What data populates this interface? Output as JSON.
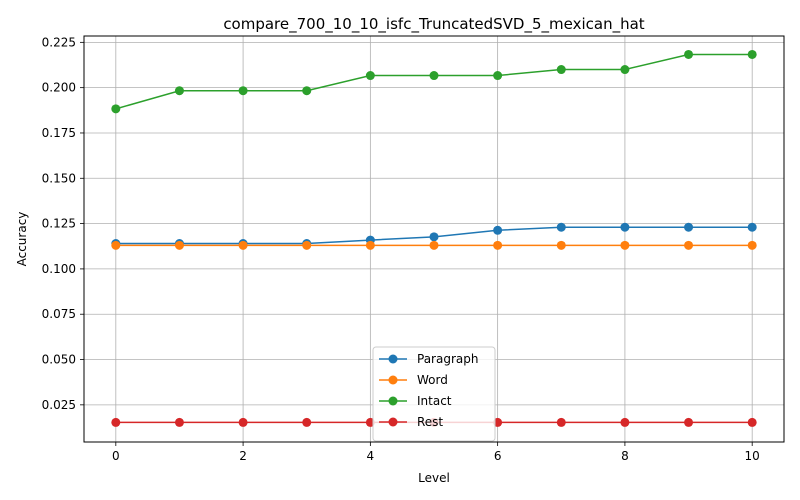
{
  "chart_data": {
    "type": "line",
    "title": "compare_700_10_10_isfc_TruncatedSVD_5_mexican_hat",
    "xlabel": "Level",
    "ylabel": "Accuracy",
    "x": [
      0,
      1,
      2,
      3,
      4,
      5,
      6,
      7,
      8,
      9,
      10
    ],
    "xlim": [
      -0.5,
      10.5
    ],
    "ylim": [
      0.0045,
      0.2285
    ],
    "xticks": [
      0,
      2,
      4,
      6,
      8,
      10
    ],
    "xtick_labels": [
      "0",
      "2",
      "4",
      "6",
      "8",
      "10"
    ],
    "yticks": [
      0.025,
      0.05,
      0.075,
      0.1,
      0.125,
      0.15,
      0.175,
      0.2,
      0.225
    ],
    "ytick_labels": [
      "0.025",
      "0.050",
      "0.075",
      "0.100",
      "0.125",
      "0.150",
      "0.175",
      "0.200",
      "0.225"
    ],
    "grid": true,
    "legend_position": "bottom-center",
    "series": [
      {
        "name": "Paragraph",
        "color": "#1f77b4",
        "marker": "circle",
        "values": [
          0.114,
          0.114,
          0.114,
          0.114,
          0.1159,
          0.1177,
          0.1213,
          0.123,
          0.123,
          0.123,
          0.123
        ]
      },
      {
        "name": "Word",
        "color": "#ff7f0e",
        "marker": "circle",
        "values": [
          0.113,
          0.113,
          0.113,
          0.113,
          0.113,
          0.113,
          0.113,
          0.113,
          0.113,
          0.113,
          0.113
        ]
      },
      {
        "name": "Intact",
        "color": "#2ca02c",
        "marker": "circle",
        "values": [
          0.1883,
          0.1983,
          0.1983,
          0.1983,
          0.2067,
          0.2067,
          0.2067,
          0.21,
          0.21,
          0.2183,
          0.2183
        ]
      },
      {
        "name": "Rest",
        "color": "#d62728",
        "marker": "circle",
        "values": [
          0.0153,
          0.0153,
          0.0153,
          0.0153,
          0.0153,
          0.0153,
          0.0153,
          0.0153,
          0.0153,
          0.0153,
          0.0153
        ]
      }
    ]
  }
}
